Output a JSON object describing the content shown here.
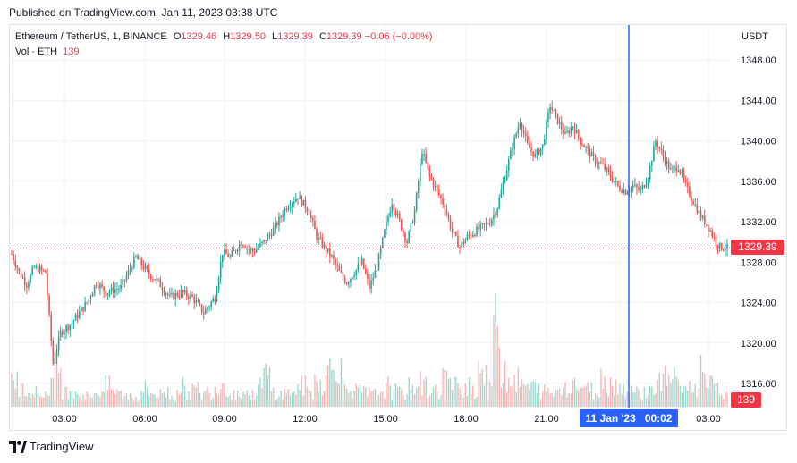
{
  "header": {
    "published": "Published on TradingView.com, Jan 11, 2023 03:38 UTC"
  },
  "legend": {
    "symbol": "Ethereum / TetherUS, 1, BINANCE",
    "o_label": "O",
    "o_value": "1329.46",
    "h_label": "H",
    "h_value": "1329.50",
    "l_label": "L",
    "l_value": "1329.39",
    "c_label": "C",
    "c_value": "1329.39",
    "change": "−0.06 (−0.00%)",
    "vol_label": "Vol · ETH",
    "vol_value": "139"
  },
  "axis": {
    "currency": "USDT"
  },
  "badges": {
    "price": "1329.39",
    "volume": "139",
    "crosshair_date": "11 Jan '23",
    "crosshair_time": "00:02"
  },
  "footer": {
    "brand": "TradingView"
  },
  "colors": {
    "up": "#26a69a",
    "down": "#ef5350",
    "crosshair": "#2962ff",
    "price_line": "#f23645",
    "grid": "#f0f3fa",
    "volume_up": "#9fd9cf",
    "volume_down": "#f7b7b5"
  },
  "chart_data": {
    "type": "candlestick",
    "price_ticks": [
      "1348.00",
      "1344.00",
      "1340.00",
      "1336.00",
      "1332.00",
      "1328.00",
      "1324.00",
      "1320.00",
      "1316.00"
    ],
    "time_ticks": [
      "03:00",
      "06:00",
      "09:00",
      "12:00",
      "15:00",
      "18:00",
      "21:00",
      "03:00"
    ],
    "ylim": [
      1313.5,
      1350
    ],
    "last_price": 1329.39,
    "crosshair_time": "00:02",
    "series": [
      {
        "name": "price",
        "points": [
          [
            0,
            1328.8
          ],
          [
            4,
            1327.0
          ],
          [
            8,
            1325.8
          ],
          [
            12,
            1327.5
          ],
          [
            18,
            1327.0
          ],
          [
            22,
            1318.0
          ],
          [
            26,
            1321.0
          ],
          [
            32,
            1322.0
          ],
          [
            40,
            1324.0
          ],
          [
            45,
            1326.0
          ],
          [
            50,
            1325.0
          ],
          [
            58,
            1325.5
          ],
          [
            66,
            1328.5
          ],
          [
            72,
            1327.0
          ],
          [
            78,
            1326.0
          ],
          [
            84,
            1324.5
          ],
          [
            90,
            1325.0
          ],
          [
            96,
            1324.5
          ],
          [
            102,
            1323.0
          ],
          [
            108,
            1324.5
          ],
          [
            112,
            1329.0
          ],
          [
            116,
            1328.5
          ],
          [
            122,
            1330.0
          ],
          [
            128,
            1329.0
          ],
          [
            134,
            1330.0
          ],
          [
            140,
            1331.5
          ],
          [
            146,
            1333.5
          ],
          [
            152,
            1334.5
          ],
          [
            158,
            1333.0
          ],
          [
            162,
            1330.5
          ],
          [
            166,
            1329.5
          ],
          [
            170,
            1328.5
          ],
          [
            174,
            1327.0
          ],
          [
            178,
            1326.0
          ],
          [
            182,
            1327.0
          ],
          [
            186,
            1328.0
          ],
          [
            190,
            1325.5
          ],
          [
            194,
            1327.5
          ],
          [
            198,
            1331.0
          ],
          [
            202,
            1334.0
          ],
          [
            206,
            1332.0
          ],
          [
            210,
            1330.0
          ],
          [
            214,
            1333.0
          ],
          [
            218,
            1339.0
          ],
          [
            222,
            1336.5
          ],
          [
            226,
            1335.0
          ],
          [
            230,
            1333.5
          ],
          [
            234,
            1331.0
          ],
          [
            238,
            1329.5
          ],
          [
            242,
            1330.5
          ],
          [
            246,
            1331.0
          ],
          [
            250,
            1331.5
          ],
          [
            254,
            1332.0
          ],
          [
            258,
            1333.5
          ],
          [
            262,
            1336.5
          ],
          [
            266,
            1339.5
          ],
          [
            270,
            1342.0
          ],
          [
            274,
            1339.5
          ],
          [
            278,
            1338.5
          ],
          [
            282,
            1339.5
          ],
          [
            286,
            1343.5
          ],
          [
            290,
            1342.0
          ],
          [
            294,
            1340.5
          ],
          [
            298,
            1341.5
          ],
          [
            302,
            1340.0
          ],
          [
            306,
            1339.0
          ],
          [
            310,
            1338.0
          ],
          [
            314,
            1337.5
          ],
          [
            318,
            1336.5
          ],
          [
            322,
            1335.5
          ],
          [
            326,
            1335.0
          ],
          [
            330,
            1335.5
          ],
          [
            334,
            1335.0
          ],
          [
            338,
            1336.5
          ],
          [
            342,
            1340.0
          ],
          [
            346,
            1338.5
          ],
          [
            350,
            1337.0
          ],
          [
            354,
            1337.5
          ],
          [
            358,
            1335.5
          ],
          [
            362,
            1334.0
          ],
          [
            366,
            1332.5
          ],
          [
            370,
            1331.5
          ],
          [
            374,
            1330.0
          ],
          [
            376,
            1329.5
          ],
          [
            380,
            1329.39
          ]
        ]
      },
      {
        "name": "volume",
        "values": [
          40,
          25,
          30,
          20,
          18,
          35,
          60,
          22,
          28,
          18,
          15,
          20,
          24,
          30,
          22,
          18,
          16,
          14,
          26,
          20,
          18,
          22,
          15,
          30,
          20,
          25,
          18,
          22,
          28,
          35,
          20,
          18,
          22,
          16,
          30,
          45,
          22,
          18,
          20,
          25,
          30,
          22,
          40,
          35,
          55,
          70,
          30,
          25,
          22,
          20,
          18,
          24,
          30,
          22,
          20,
          28,
          35,
          30,
          25,
          22,
          45,
          30,
          28,
          35,
          25,
          60,
          40,
          110,
          55,
          45,
          38,
          30,
          28,
          25,
          22,
          20,
          28,
          32,
          35,
          30,
          25,
          22,
          40,
          35,
          30,
          28,
          25,
          20,
          22,
          30,
          35,
          45,
          38,
          30,
          28,
          25,
          60,
          30,
          25,
          20
        ]
      }
    ]
  }
}
